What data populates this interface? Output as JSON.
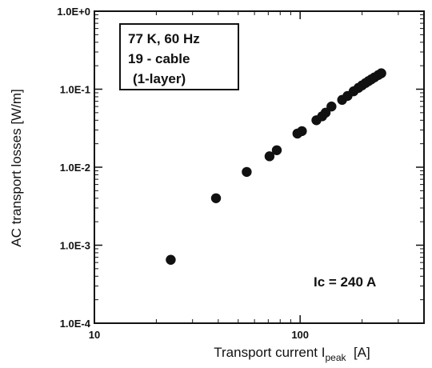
{
  "chart_data": {
    "type": "scatter",
    "title": "",
    "xlabel": {
      "prefix": "Transport current I",
      "subscript": "peak",
      "suffix": "  [A]"
    },
    "ylabel": "AC transport losses [W/m]",
    "x_scale": "log",
    "y_scale": "log",
    "xlim": [
      10,
      400
    ],
    "ylim": [
      0.0001,
      1
    ],
    "x_ticks": [
      {
        "value": 10,
        "label": "10"
      },
      {
        "value": 100,
        "label": "100"
      }
    ],
    "y_ticks": [
      {
        "value": 0.0001,
        "label": "1.0E-4"
      },
      {
        "value": 0.001,
        "label": "1.0E-3"
      },
      {
        "value": 0.01,
        "label": "1.0E-2"
      },
      {
        "value": 0.1,
        "label": "1.0E-1"
      },
      {
        "value": 1,
        "label": "1.0E+0"
      }
    ],
    "grid": false,
    "legend": null,
    "annotation_box": {
      "lines": [
        "77 K, 60 Hz",
        "19 - cable",
        "(1-layer)"
      ],
      "placement": "top-left"
    },
    "annotation_text": {
      "text": "Ic = 240 A",
      "placement": "bottom-right"
    },
    "series": [
      {
        "marker": "filled-circle",
        "color": "#111111",
        "points": [
          {
            "x": 23.5,
            "y": 0.00065
          },
          {
            "x": 39,
            "y": 0.004
          },
          {
            "x": 55,
            "y": 0.0087
          },
          {
            "x": 71,
            "y": 0.0138
          },
          {
            "x": 77,
            "y": 0.0165
          },
          {
            "x": 97,
            "y": 0.027
          },
          {
            "x": 102,
            "y": 0.029
          },
          {
            "x": 120,
            "y": 0.04
          },
          {
            "x": 128,
            "y": 0.045
          },
          {
            "x": 133,
            "y": 0.05
          },
          {
            "x": 142,
            "y": 0.06
          },
          {
            "x": 160,
            "y": 0.073
          },
          {
            "x": 170,
            "y": 0.082
          },
          {
            "x": 182,
            "y": 0.094
          },
          {
            "x": 192,
            "y": 0.104
          },
          {
            "x": 200,
            "y": 0.112
          },
          {
            "x": 208,
            "y": 0.12
          },
          {
            "x": 215,
            "y": 0.127
          },
          {
            "x": 222,
            "y": 0.134
          },
          {
            "x": 230,
            "y": 0.142
          },
          {
            "x": 240,
            "y": 0.152
          },
          {
            "x": 248,
            "y": 0.16
          }
        ]
      }
    ]
  },
  "colors": {
    "ink": "#111111",
    "background": "#ffffff"
  }
}
